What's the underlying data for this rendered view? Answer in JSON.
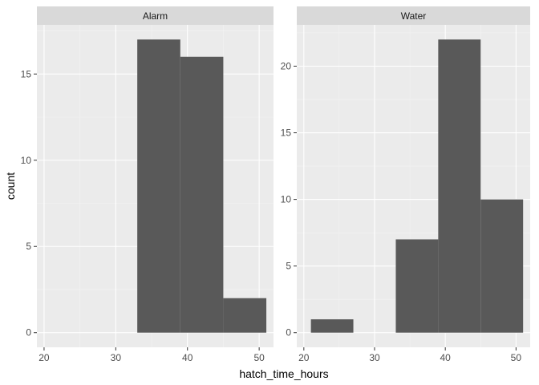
{
  "chart_data": {
    "type": "bar",
    "xlabel": "hatch_time_hours",
    "ylabel": "count",
    "binwidth": 6,
    "xlim": [
      19,
      52
    ],
    "x_ticks": [
      20,
      30,
      40,
      50
    ],
    "grid": true,
    "legend": "none",
    "colors": {
      "panel_bg": "#ebebeb",
      "strip_bg": "#d9d9d9",
      "grid_major": "#ffffff",
      "grid_minor": "#f3f3f3",
      "bar_fill": "#595959",
      "tick_mark": "#333333"
    },
    "panels": [
      {
        "strip": "Alarm",
        "ylim": [
          -0.85,
          17.85
        ],
        "y_ticks": [
          0,
          5,
          10,
          15
        ],
        "bins": [
          {
            "x0": 33,
            "x1": 39,
            "count": 17
          },
          {
            "x0": 39,
            "x1": 45,
            "count": 16
          },
          {
            "x0": 45,
            "x1": 51,
            "count": 2
          }
        ]
      },
      {
        "strip": "Water",
        "ylim": [
          -1.1,
          23.1
        ],
        "y_ticks": [
          0,
          5,
          10,
          15,
          20
        ],
        "bins": [
          {
            "x0": 21,
            "x1": 27,
            "count": 1
          },
          {
            "x0": 33,
            "x1": 39,
            "count": 7
          },
          {
            "x0": 39,
            "x1": 45,
            "count": 22
          },
          {
            "x0": 45,
            "x1": 51,
            "count": 10
          }
        ]
      }
    ]
  }
}
